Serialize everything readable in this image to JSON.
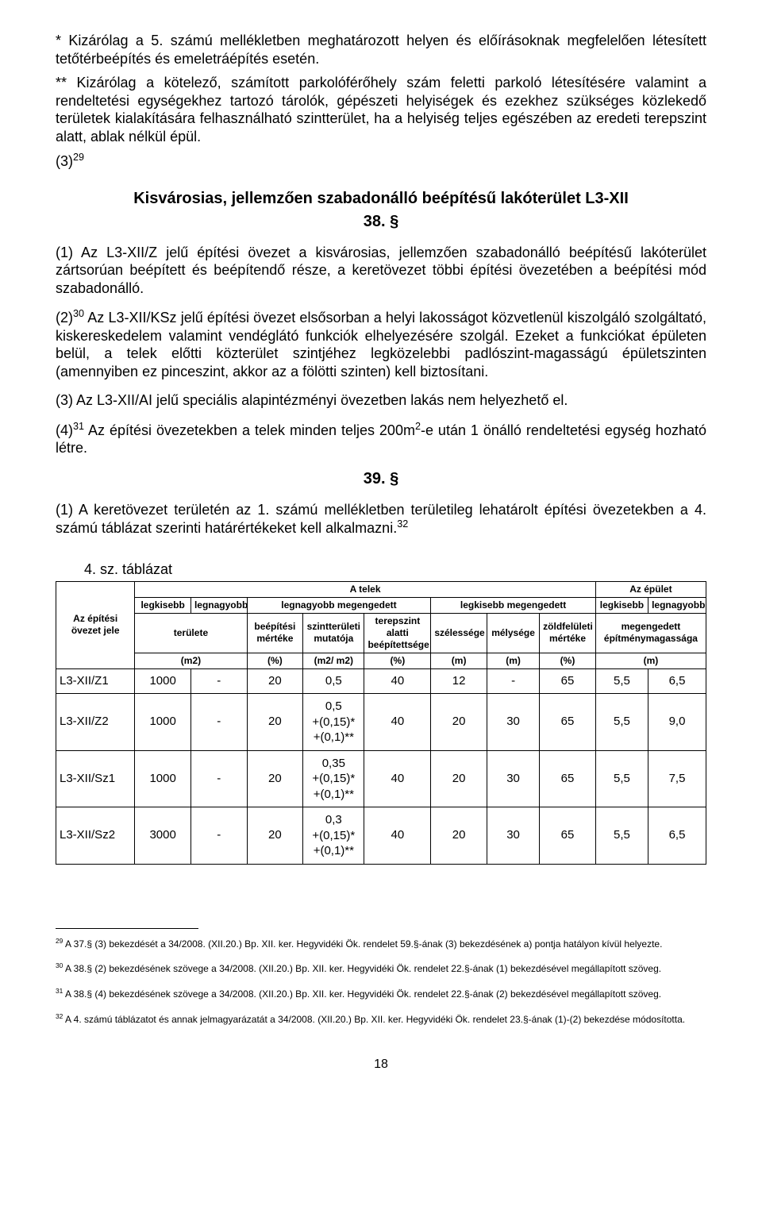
{
  "notes": {
    "star1": "* Kizárólag a 5. számú mellékletben meghatározott helyen és előírásoknak megfelelően létesített tetőtérbeépítés és emeletráépítés esetén.",
    "star2": "** Kizárólag a kötelező, számított parkolóférőhely szám feletti parkoló létesítésére valamint a rendeltetési egységekhez tartozó tárolók, gépészeti helyiségek és ezekhez szükséges közlekedő területek kialakítására felhasználható szintterület, ha a helyiség teljes egészében az eredeti terepszint alatt, ablak nélkül épül.",
    "note3": "(3)"
  },
  "note3_sup": "29",
  "heading": "Kisvárosias, jellemzően szabadonálló beépítésű lakóterület L3-XII",
  "section38": "38. §",
  "paras": {
    "p1": "(1) Az L3-XII/Z jelű építési övezet a kisvárosias, jellemzően szabadonálló beépítésű lakóterület zártsorúan beépített és beépítendő része, a keretövezet többi építési övezetében a beépítési mód szabadonálló.",
    "p2a": "(2)",
    "p2a_sup": "30",
    "p2b": " Az L3-XII/KSz jelű építési övezet elsősorban a helyi lakosságot közvetlenül kiszolgáló szolgáltató, kiskereskedelem valamint vendéglátó funkciók elhelyezésére szolgál. Ezeket a funkciókat épületen belül, a telek előtti közterület szintjéhez legközelebbi padlószint-magasságú épületszinten (amennyiben ez pinceszint, akkor az a fölötti szinten) kell biztosítani.",
    "p3": "(3) Az L3-XII/AI jelű speciális alapintézményi övezetben lakás nem helyezhető el.",
    "p4a": "(4)",
    "p4a_sup": "31",
    "p4b_a": " Az építési övezetekben a telek minden teljes 200m",
    "p4b_sup": "2",
    "p4b_b": "-e után 1 önálló rendeltetési egység hozható létre."
  },
  "section39": "39. §",
  "para39": {
    "a": "(1) A keretövezet területén az 1. számú mellékletben területileg lehatárolt építési övezetekben a 4. számú táblázat szerinti határértékeket kell alkalmazni.",
    "sup": "32"
  },
  "table": {
    "caption": "4. sz. táblázat",
    "header": {
      "r1c1": "Az építési övezet jele",
      "r1c2": "A telek",
      "r1c3": "Az épület",
      "r2a": "legkisebb",
      "r2b": "legnagyobb",
      "r2c": "legnagyobb megengedett",
      "r2d": "legkisebb megengedett",
      "r2e": "legkisebb",
      "r2f": "legnagyobb",
      "r3a": "területe",
      "r3b": "beépítési mértéke",
      "r3c": "szintterületi mutatója",
      "r3d": "terepszint alatti beépítettsége",
      "r3e": "szélessége",
      "r3f": "mélysége",
      "r3g": "zöldfelületi mértéke",
      "r3h": "megengedett építménymagassága",
      "u_m2": "(m2)",
      "u_pct": "(%)",
      "u_ratio": "(m2/ m2)",
      "u_m": "(m)"
    },
    "rows": [
      {
        "name": "L3-XII/Z1",
        "c2": "1000",
        "c3": "-",
        "c4": "20",
        "c5": "0,5",
        "c6": "40",
        "c7": "12",
        "c8": "-",
        "c9": "65",
        "c10": "5,5",
        "c11": "6,5",
        "multi": false
      },
      {
        "name": "L3-XII/Z2",
        "c2": "1000",
        "c3": "-",
        "c4": "20",
        "c5": "0,5\n+(0,15)*\n+(0,1)**",
        "c6": "40",
        "c7": "20",
        "c8": "30",
        "c9": "65",
        "c10": "5,5",
        "c11": "9,0",
        "multi": true
      },
      {
        "name": "L3-XII/Sz1",
        "c2": "1000",
        "c3": "-",
        "c4": "20",
        "c5": "0,35\n+(0,15)*\n+(0,1)**",
        "c6": "40",
        "c7": "20",
        "c8": "30",
        "c9": "65",
        "c10": "5,5",
        "c11": "7,5",
        "multi": true
      },
      {
        "name": "L3-XII/Sz2",
        "c2": "3000",
        "c3": "-",
        "c4": "20",
        "c5": "0,3\n+(0,15)*\n+(0,1)**",
        "c6": "40",
        "c7": "20",
        "c8": "30",
        "c9": "65",
        "c10": "5,5",
        "c11": "6,5",
        "multi": true
      }
    ]
  },
  "footnotes": {
    "f29": " A 37.§ (3) bekezdését a 34/2008. (XII.20.) Bp. XII. ker. Hegyvidéki Ök. rendelet 59.§-ának (3) bekezdésének a) pontja hatályon kívül helyezte.",
    "f30": " A 38.§ (2) bekezdésének szövege a 34/2008. (XII.20.) Bp. XII. ker. Hegyvidéki Ök. rendelet 22.§-ának (1) bekezdésével megállapított szöveg.",
    "f31": " A 38.§ (4) bekezdésének szövege a 34/2008. (XII.20.) Bp. XII. ker. Hegyvidéki Ök. rendelet 22.§-ának (2) bekezdésével megállapított szöveg.",
    "f32": " A 4. számú táblázatot és annak jelmagyarázatát a 34/2008. (XII.20.) Bp. XII. ker. Hegyvidéki Ök. rendelet 23.§-ának (1)-(2) bekezdése módosította."
  },
  "fn_nums": {
    "n29": "29",
    "n30": "30",
    "n31": "31",
    "n32": "32"
  },
  "page_num": "18"
}
